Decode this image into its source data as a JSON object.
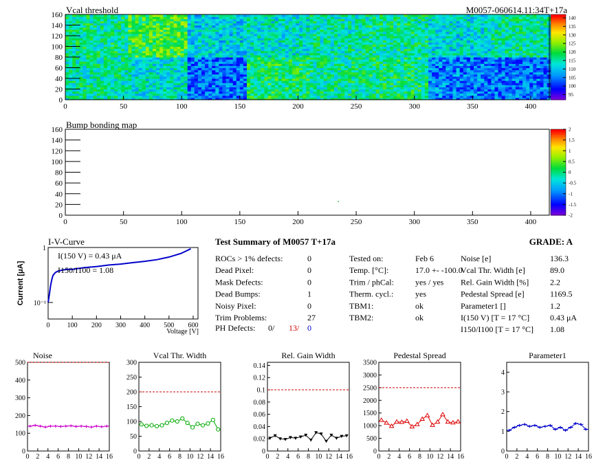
{
  "header": {
    "title_left": "Vcal threshold",
    "title_right": "M0057-060614.11:34T+17a"
  },
  "vcal_map": {
    "type": "heatmap",
    "title": "Vcal threshold",
    "x_ticks": [
      "0",
      "50",
      "100",
      "150",
      "200",
      "250",
      "300",
      "350",
      "400"
    ],
    "y_ticks": [
      "0",
      "20",
      "40",
      "60",
      "80",
      "100",
      "120",
      "140",
      "160"
    ],
    "xlim": [
      0,
      416
    ],
    "ylim": [
      0,
      160
    ],
    "colorbar_ticks": [
      "95",
      "100",
      "105",
      "110",
      "115",
      "120",
      "125",
      "130",
      "135",
      "140"
    ],
    "zlim": [
      92,
      142
    ],
    "roc_means_top": [
      116,
      121,
      111,
      113,
      115,
      116,
      112,
      115
    ],
    "roc_means_bottom": [
      115,
      113,
      104,
      118,
      116,
      117,
      105,
      104
    ]
  },
  "bump_map": {
    "type": "heatmap",
    "title": "Bump bonding map",
    "x_ticks": [
      "0",
      "50",
      "100",
      "150",
      "200",
      "250",
      "300",
      "350",
      "400"
    ],
    "y_ticks": [
      "0",
      "20",
      "40",
      "60",
      "80",
      "100",
      "120",
      "140",
      "160"
    ],
    "colorbar_ticks": [
      "2",
      "1.5",
      "1",
      "0.5",
      "0",
      "-0.5",
      "-1",
      "-1.5",
      "-2"
    ],
    "dead_bump": {
      "x": 234,
      "y": 26
    }
  },
  "iv_curve": {
    "type": "line",
    "title": "I-V-Curve",
    "ylabel": "Current [μA]",
    "xlabel": "Voltage [V]",
    "x_ticks": [
      "0",
      "100",
      "200",
      "300",
      "400",
      "500",
      "600"
    ],
    "xlim": [
      0,
      620
    ],
    "ylim_log": [
      0.05,
      1.0
    ],
    "y_tick_labels": [
      "1",
      "10⁻¹"
    ],
    "annotation_1": "I(150 V) = 0.43 μA",
    "annotation_2": "I150/I100 =  1.08",
    "x": [
      0,
      5,
      10,
      15,
      20,
      30,
      40,
      50,
      60,
      80,
      100,
      150,
      200,
      250,
      300,
      350,
      400,
      450,
      500,
      550,
      590
    ],
    "y": [
      0.1,
      0.14,
      0.2,
      0.26,
      0.31,
      0.35,
      0.37,
      0.38,
      0.39,
      0.4,
      0.4,
      0.43,
      0.45,
      0.48,
      0.5,
      0.53,
      0.56,
      0.6,
      0.67,
      0.78,
      0.95
    ]
  },
  "summary": {
    "title": "Test Summary of M0057      T+17a",
    "grade": "GRADE:  A",
    "left": [
      {
        "label": "ROCs > 1% defects:",
        "value": "0"
      },
      {
        "label": "Dead Pixel:",
        "value": "0"
      },
      {
        "label": "Mask Defects:",
        "value": "0"
      },
      {
        "label": "Dead Bumps:",
        "value": "1"
      },
      {
        "label": "Noisy Pixel:",
        "value": "0"
      },
      {
        "label": "Trim Problems:",
        "value": "27"
      }
    ],
    "ph_defects_label": "PH Defects:",
    "ph_defects_values": [
      "0/",
      "13/",
      "0"
    ],
    "middle": [
      {
        "label": "Tested on:",
        "value": "Feb 6"
      },
      {
        "label": "Temp. [°C]:",
        "value": "17.0 +- -100.0"
      },
      {
        "label": "Trim / phCal:",
        "value": "yes / yes"
      },
      {
        "label": "Therm. cycl.:",
        "value": "yes"
      },
      {
        "label": "TBM1:",
        "value": "ok"
      },
      {
        "label": "TBM2:",
        "value": "ok"
      }
    ],
    "right": [
      {
        "label": "Noise [e]",
        "value": "136.3"
      },
      {
        "label": "Vcal Thr. Width [e]",
        "value": "89.0"
      },
      {
        "label": "Rel. Gain Width [%]",
        "value": "2.2"
      },
      {
        "label": "Pedestal Spread [e]",
        "value": "1169.5"
      },
      {
        "label": "Parameter1 []",
        "value": "1.2"
      },
      {
        "label": "I(150 V) [T = 17 °C]",
        "value": "0.43 μA"
      },
      {
        "label": "I150/I100  [T = 17 °C]",
        "value": "1.08"
      }
    ]
  },
  "chart_data": [
    {
      "type": "line",
      "title": "Noise",
      "color": "#cc00cc",
      "marker": "plus",
      "ylim": [
        0,
        500
      ],
      "y_ticks": [
        "0",
        "100",
        "200",
        "300",
        "400",
        "500"
      ],
      "cut": 500,
      "x": [
        0,
        1,
        2,
        3,
        4,
        5,
        6,
        7,
        8,
        9,
        10,
        11,
        12,
        13,
        14,
        15
      ],
      "values": [
        140,
        145,
        140,
        135,
        140,
        140,
        138,
        140,
        142,
        138,
        140,
        138,
        135,
        140,
        137,
        140
      ]
    },
    {
      "type": "line",
      "title": "Vcal Thr. Width",
      "color": "#00aa00",
      "marker": "circle",
      "ylim": [
        0,
        300
      ],
      "y_ticks": [
        "0",
        "50",
        "100",
        "150",
        "200",
        "250",
        "300"
      ],
      "cut": 200,
      "x": [
        0,
        1,
        2,
        3,
        4,
        5,
        6,
        7,
        8,
        9,
        10,
        11,
        12,
        13,
        14,
        15
      ],
      "values": [
        90,
        85,
        87,
        84,
        87,
        95,
        103,
        100,
        110,
        95,
        80,
        92,
        87,
        93,
        105,
        73
      ]
    },
    {
      "type": "line",
      "title": "Rel. Gain Width",
      "color": "#000000",
      "marker": "triangle-down",
      "ylim": [
        0,
        0.145
      ],
      "y_ticks": [
        "0",
        "0.02",
        "0.04",
        "0.06",
        "0.08",
        "0.1",
        "0.12",
        "0.14"
      ],
      "cut": 0.1,
      "x": [
        0,
        1,
        2,
        3,
        4,
        5,
        6,
        7,
        8,
        9,
        10,
        11,
        12,
        13,
        14,
        15
      ],
      "values": [
        0.021,
        0.025,
        0.02,
        0.019,
        0.022,
        0.021,
        0.023,
        0.026,
        0.018,
        0.03,
        0.028,
        0.016,
        0.026,
        0.021,
        0.024,
        0.025
      ]
    },
    {
      "type": "line",
      "title": "Pedestal Spread",
      "color": "#dd0000",
      "marker": "triangle-up",
      "ylim": [
        0,
        3500
      ],
      "y_ticks": [
        "0",
        "500",
        "1000",
        "1500",
        "2000",
        "2500",
        "3000",
        "3500"
      ],
      "cut": 2500,
      "x": [
        0,
        1,
        2,
        3,
        4,
        5,
        6,
        7,
        8,
        9,
        10,
        11,
        12,
        13,
        14,
        15
      ],
      "values": [
        1220,
        1110,
        980,
        1150,
        1140,
        1180,
        960,
        1050,
        1260,
        1400,
        1020,
        1150,
        1440,
        1150,
        1120,
        1160
      ]
    },
    {
      "type": "line",
      "title": "Parameter1",
      "color": "#0000cc",
      "marker": "plus",
      "ylim": [
        0,
        4.5
      ],
      "y_ticks": [
        "0",
        "1",
        "2",
        "3",
        "4"
      ],
      "cut": null,
      "x": [
        0,
        1,
        2,
        3,
        4,
        5,
        6,
        7,
        8,
        9,
        10,
        11,
        12,
        13,
        14,
        15
      ],
      "values": [
        1.05,
        1.2,
        1.3,
        1.35,
        1.25,
        1.3,
        1.2,
        1.25,
        1.3,
        1.1,
        1.2,
        1.05,
        1.2,
        1.4,
        1.35,
        1.1
      ]
    }
  ],
  "small_x_ticks": [
    "0",
    "2",
    "4",
    "6",
    "8",
    "10",
    "12",
    "14",
    "16"
  ]
}
